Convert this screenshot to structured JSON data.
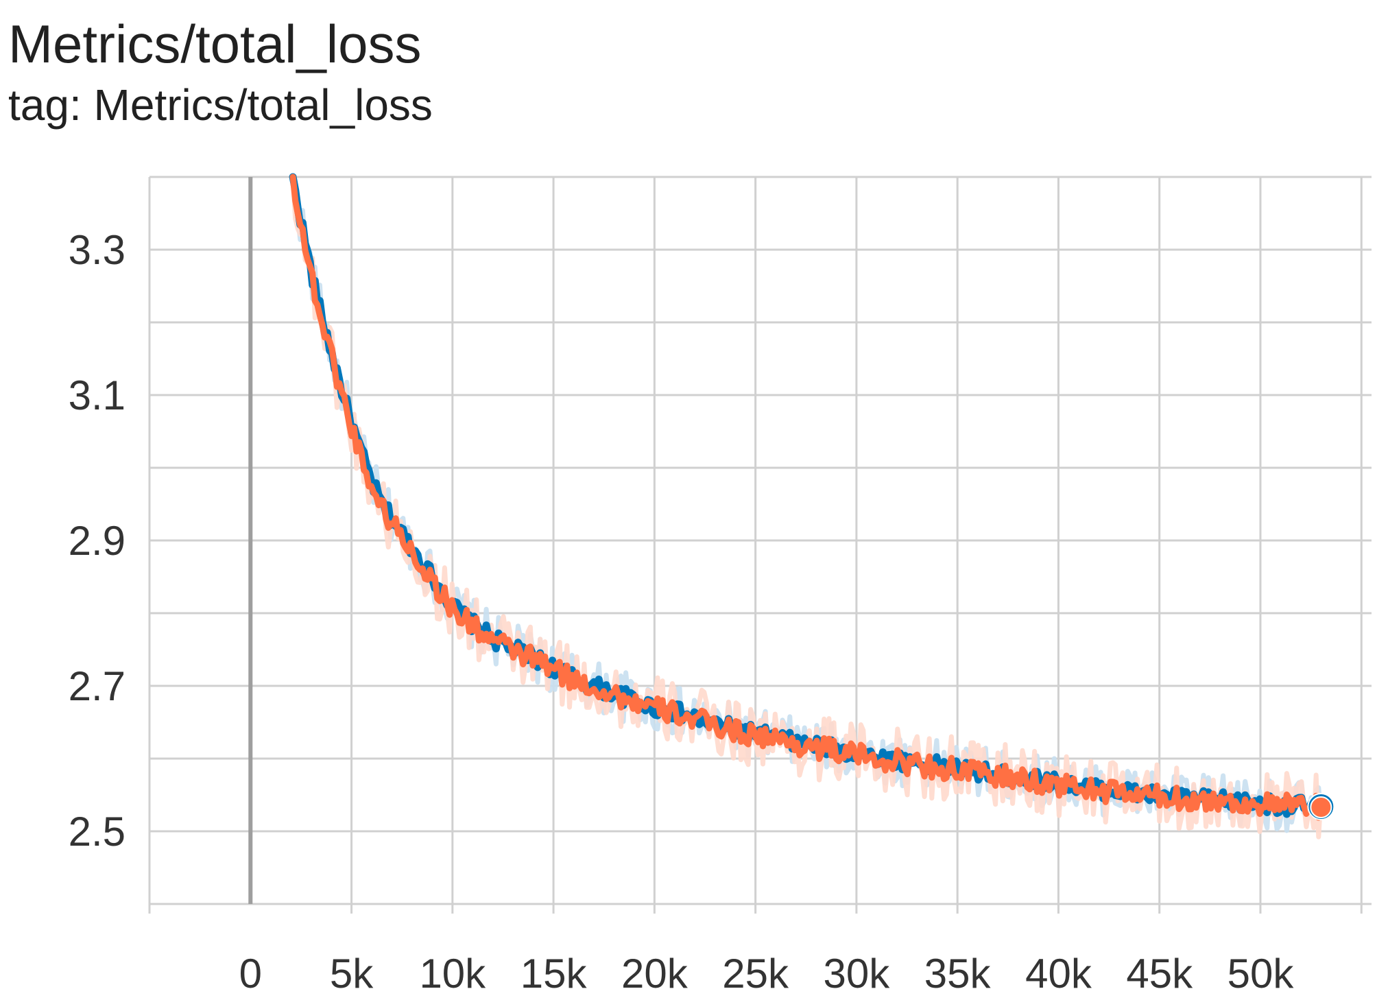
{
  "card": {
    "title": "Metrics/total_loss",
    "subtitle": "tag: Metrics/total_loss"
  },
  "colors": {
    "grid": "#d0d0d0",
    "zero_line": "#9e9e9e",
    "series_a": "#0077bb",
    "series_a_raw": "#c8dff0",
    "series_b": "#ff7043",
    "series_b_raw": "#ffd9cc"
  },
  "chart_data": {
    "type": "line",
    "title": "",
    "xlabel": "",
    "ylabel": "",
    "xlim": [
      -5000,
      55500
    ],
    "ylim": [
      2.4,
      3.4
    ],
    "grid": true,
    "x_ticks": [
      0,
      5000,
      10000,
      15000,
      20000,
      25000,
      30000,
      35000,
      40000,
      45000,
      50000
    ],
    "x_tick_labels": [
      "0",
      "5k",
      "10k",
      "15k",
      "20k",
      "25k",
      "30k",
      "35k",
      "40k",
      "45k",
      "50k"
    ],
    "y_ticks": [
      2.5,
      2.7,
      2.9,
      3.1,
      3.3
    ],
    "y_tick_labels": [
      "2.5",
      "2.7",
      "2.9",
      "3.1",
      "3.3"
    ],
    "series": [
      {
        "color": "#0077bb",
        "points": [
          [
            2100,
            3.4
          ],
          [
            2500,
            3.34
          ],
          [
            3000,
            3.27
          ],
          [
            3500,
            3.21
          ],
          [
            4000,
            3.16
          ],
          [
            4500,
            3.11
          ],
          [
            5000,
            3.06
          ],
          [
            5500,
            3.02
          ],
          [
            6000,
            2.98
          ],
          [
            6500,
            2.95
          ],
          [
            7000,
            2.93
          ],
          [
            7500,
            2.91
          ],
          [
            8000,
            2.89
          ],
          [
            8500,
            2.87
          ],
          [
            9000,
            2.85
          ],
          [
            9500,
            2.83
          ],
          [
            10000,
            2.81
          ],
          [
            11000,
            2.785
          ],
          [
            12000,
            2.765
          ],
          [
            13000,
            2.75
          ],
          [
            14000,
            2.74
          ],
          [
            15000,
            2.725
          ],
          [
            16000,
            2.71
          ],
          [
            17000,
            2.7
          ],
          [
            18000,
            2.69
          ],
          [
            19000,
            2.68
          ],
          [
            20000,
            2.67
          ],
          [
            21000,
            2.665
          ],
          [
            22000,
            2.655
          ],
          [
            23000,
            2.648
          ],
          [
            24000,
            2.64
          ],
          [
            25000,
            2.635
          ],
          [
            26000,
            2.628
          ],
          [
            27000,
            2.622
          ],
          [
            28000,
            2.618
          ],
          [
            29000,
            2.612
          ],
          [
            30000,
            2.607
          ],
          [
            31000,
            2.602
          ],
          [
            32000,
            2.598
          ],
          [
            33000,
            2.594
          ],
          [
            34000,
            2.59
          ],
          [
            35000,
            2.586
          ],
          [
            36000,
            2.582
          ],
          [
            37000,
            2.578
          ],
          [
            38000,
            2.574
          ],
          [
            39000,
            2.57
          ],
          [
            40000,
            2.566
          ],
          [
            41000,
            2.562
          ],
          [
            42000,
            2.558
          ],
          [
            43000,
            2.555
          ],
          [
            44000,
            2.552
          ],
          [
            45000,
            2.549
          ],
          [
            46000,
            2.546
          ],
          [
            47000,
            2.544
          ],
          [
            48000,
            2.542
          ],
          [
            49000,
            2.54
          ],
          [
            50000,
            2.538
          ],
          [
            51000,
            2.536
          ],
          [
            52000,
            2.535
          ],
          [
            53000,
            2.534
          ]
        ]
      },
      {
        "color": "#ff7043",
        "points": [
          [
            2100,
            3.4
          ],
          [
            2500,
            3.335
          ],
          [
            3000,
            3.265
          ],
          [
            3500,
            3.205
          ],
          [
            4000,
            3.155
          ],
          [
            4500,
            3.105
          ],
          [
            5000,
            3.055
          ],
          [
            5500,
            3.015
          ],
          [
            6000,
            2.975
          ],
          [
            6500,
            2.945
          ],
          [
            7000,
            2.925
          ],
          [
            7500,
            2.905
          ],
          [
            8000,
            2.885
          ],
          [
            8500,
            2.865
          ],
          [
            9000,
            2.845
          ],
          [
            9500,
            2.825
          ],
          [
            10000,
            2.805
          ],
          [
            11000,
            2.783
          ],
          [
            12000,
            2.763
          ],
          [
            13000,
            2.748
          ],
          [
            14000,
            2.738
          ],
          [
            15000,
            2.723
          ],
          [
            16000,
            2.708
          ],
          [
            17000,
            2.698
          ],
          [
            18000,
            2.688
          ],
          [
            19000,
            2.678
          ],
          [
            20000,
            2.668
          ],
          [
            21000,
            2.663
          ],
          [
            22000,
            2.653
          ],
          [
            23000,
            2.646
          ],
          [
            24000,
            2.638
          ],
          [
            25000,
            2.633
          ],
          [
            26000,
            2.626
          ],
          [
            27000,
            2.62
          ],
          [
            28000,
            2.616
          ],
          [
            29000,
            2.61
          ],
          [
            30000,
            2.605
          ],
          [
            31000,
            2.6
          ],
          [
            32000,
            2.596
          ],
          [
            33000,
            2.592
          ],
          [
            34000,
            2.588
          ],
          [
            35000,
            2.584
          ],
          [
            36000,
            2.58
          ],
          [
            37000,
            2.576
          ],
          [
            38000,
            2.572
          ],
          [
            39000,
            2.568
          ],
          [
            40000,
            2.564
          ],
          [
            41000,
            2.56
          ],
          [
            42000,
            2.556
          ],
          [
            43000,
            2.553
          ],
          [
            44000,
            2.55
          ],
          [
            45000,
            2.547
          ],
          [
            46000,
            2.545
          ],
          [
            47000,
            2.543
          ],
          [
            48000,
            2.541
          ],
          [
            49000,
            2.539
          ],
          [
            50000,
            2.537
          ],
          [
            51000,
            2.535
          ],
          [
            52000,
            2.534
          ],
          [
            53000,
            2.533
          ]
        ]
      }
    ],
    "legend": "none",
    "last_point_marker": true
  }
}
